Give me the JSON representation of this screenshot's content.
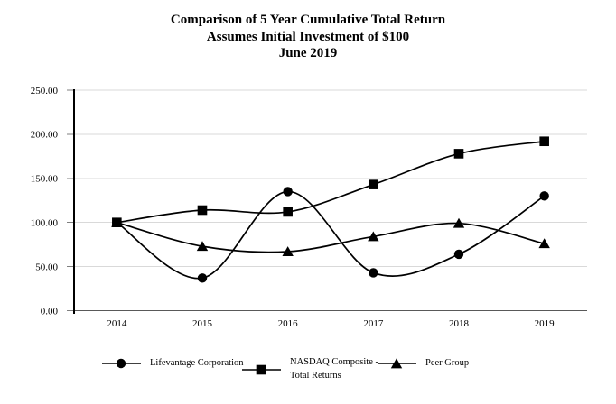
{
  "title": {
    "line1": "Comparison of 5 Year Cumulative Total Return",
    "line2": "Assumes Initial Investment of $100",
    "line3": "June 2019"
  },
  "chart_data": {
    "type": "line",
    "smooth": true,
    "grid": "horizontal",
    "legend_position": "bottom",
    "categories": [
      "2014",
      "2015",
      "2016",
      "2017",
      "2018",
      "2019"
    ],
    "series": [
      {
        "name": "Lifevantage Corporation",
        "marker": "circle",
        "legend_lines": [
          "Lifevantage Corporation"
        ],
        "values": [
          100.0,
          37.0,
          135.0,
          43.0,
          64.0,
          130.0
        ]
      },
      {
        "name": "NASDAQ Composite - Total Returns",
        "marker": "square",
        "legend_lines": [
          "NASDAQ Composite -",
          "Total Returns"
        ],
        "values": [
          100.0,
          114.0,
          112.0,
          143.0,
          178.0,
          192.0
        ]
      },
      {
        "name": "Peer Group",
        "marker": "triangle",
        "legend_lines": [
          "Peer Group"
        ],
        "values": [
          100.0,
          73.0,
          67.0,
          84.0,
          99.0,
          76.0
        ]
      }
    ],
    "y_axis": {
      "min": 0,
      "max": 250,
      "step": 50,
      "tick_labels": [
        "0.00",
        "50.00",
        "100.00",
        "150.00",
        "200.00",
        "250.00"
      ]
    },
    "colors": {
      "line": "#000000",
      "marker": "#000000",
      "gridline": "#d9d9d9",
      "tick": "#7f7f7f",
      "y_axis_line": "#000000",
      "x_axis_line": "#595959",
      "text": "#000000"
    }
  }
}
